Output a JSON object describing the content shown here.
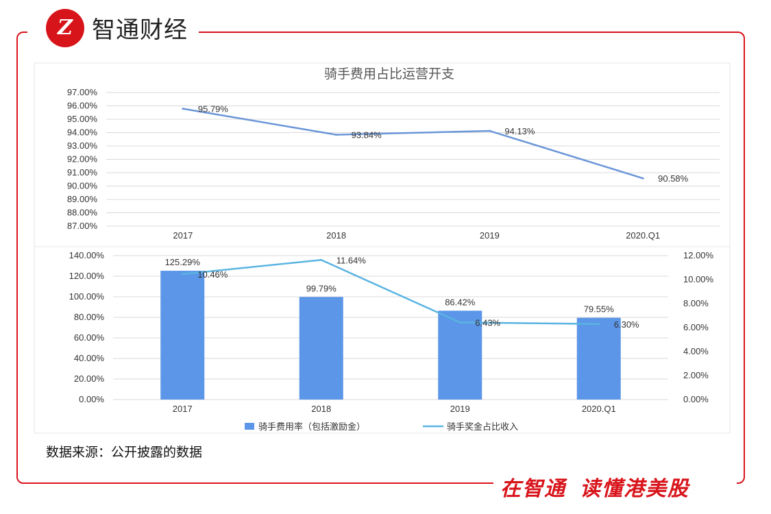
{
  "brand": {
    "logo_mark": "Z",
    "logo_text": "智通财经",
    "slogan_part1": "在智通",
    "slogan_part2": "读懂港美股",
    "accent_color": "#d8141b"
  },
  "source_note": "数据来源：公开披露的数据",
  "chart_data": [
    {
      "type": "line",
      "title": "骑手费用占比运营开支",
      "categories": [
        "2017",
        "2018",
        "2019",
        "2020.Q1"
      ],
      "series": [
        {
          "name": "骑手费用占比运营开支",
          "values": [
            95.79,
            93.84,
            94.13,
            90.58
          ],
          "labels": [
            "95.79%",
            "93.84%",
            "94.13%",
            "90.58%"
          ],
          "color": "#6a95d8"
        }
      ],
      "ylim": [
        87,
        97
      ],
      "yticks": [
        "97.00%",
        "96.00%",
        "95.00%",
        "94.00%",
        "93.00%",
        "92.00%",
        "91.00%",
        "90.00%",
        "89.00%",
        "88.00%",
        "87.00%"
      ],
      "grid": true
    },
    {
      "type": "bar",
      "title": "",
      "categories": [
        "2017",
        "2018",
        "2019",
        "2020.Q1"
      ],
      "series": [
        {
          "name": "骑手费用率（包括激励金）",
          "type": "bar",
          "axis": "left",
          "values": [
            125.29,
            99.79,
            86.42,
            79.55
          ],
          "labels": [
            "125.29%",
            "99.79%",
            "86.42%",
            "79.55%"
          ],
          "color": "#5b96e8"
        },
        {
          "name": "骑手奖金占比收入",
          "type": "line",
          "axis": "right",
          "values": [
            10.46,
            11.64,
            6.43,
            6.3
          ],
          "labels": [
            "10.46%",
            "11.64%",
            "6.43%",
            "6.30%"
          ],
          "color": "#5ab4e2"
        }
      ],
      "ylim": [
        0,
        140
      ],
      "y2lim": [
        0,
        12
      ],
      "yticks": [
        "140.00%",
        "120.00%",
        "100.00%",
        "80.00%",
        "60.00%",
        "40.00%",
        "20.00%",
        "0.00%"
      ],
      "y2ticks": [
        "12.00%",
        "10.00%",
        "8.00%",
        "6.00%",
        "4.00%",
        "2.00%",
        "0.00%"
      ],
      "legend": "bottom",
      "grid": true
    }
  ]
}
